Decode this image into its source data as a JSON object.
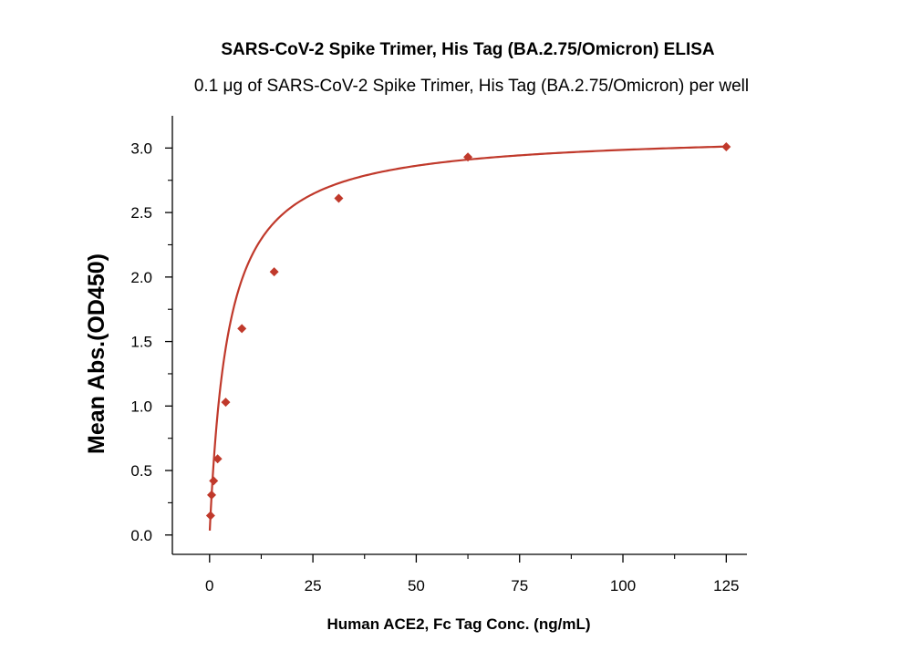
{
  "chart_data": {
    "type": "scatter",
    "title": "SARS-CoV-2 Spike Trimer, His Tag (BA.2.75/Omicron) ELISA",
    "subtitle": "0.1 μg of SARS-CoV-2 Spike Trimer, His Tag (BA.2.75/Omicron) per well",
    "xlabel": "Human ACE2, Fc Tag Conc. (ng/mL)",
    "ylabel": "Mean Abs.(OD450)",
    "xlim": [
      -9,
      130
    ],
    "ylim": [
      -0.15,
      3.25
    ],
    "x_ticks": [
      0,
      25,
      50,
      75,
      100,
      125
    ],
    "x_tick_labels": [
      "0",
      "25",
      "50",
      "75",
      "100",
      "125"
    ],
    "y_ticks": [
      0.0,
      0.5,
      1.0,
      1.5,
      2.0,
      2.5,
      3.0
    ],
    "y_tick_labels": [
      "0.0",
      "0.5",
      "1.0",
      "1.5",
      "2.0",
      "2.5",
      "3.0"
    ],
    "grid": false,
    "legend": "none",
    "marker": "diamond",
    "color": "#c0392b",
    "series": [
      {
        "x": [
          0.24,
          0.49,
          0.98,
          1.95,
          3.91,
          7.81,
          15.63,
          31.25,
          62.5,
          125
        ],
        "y": [
          0.15,
          0.31,
          0.42,
          0.59,
          1.03,
          1.6,
          2.04,
          2.61,
          2.93,
          3.01
        ]
      }
    ],
    "fit": {
      "model": "hyperbolic",
      "bmax": 3.12,
      "kd": 4.5
    }
  }
}
